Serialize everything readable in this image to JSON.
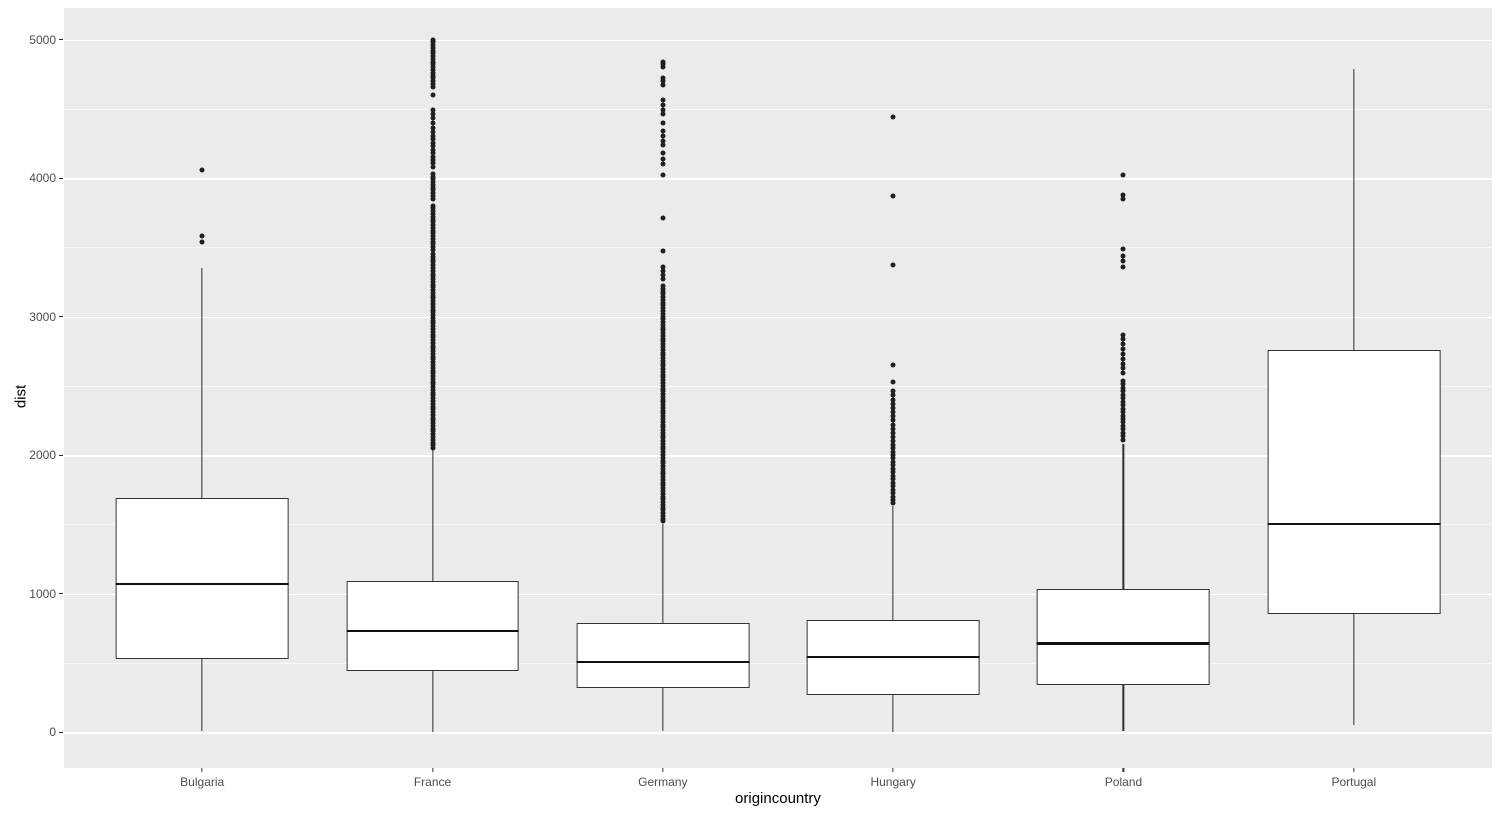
{
  "chart_data": {
    "type": "boxplot",
    "title": "",
    "xlabel": "origincountry",
    "ylabel": "dist",
    "categories": [
      "Bulgaria",
      "France",
      "Germany",
      "Hungary",
      "Poland",
      "Portugal"
    ],
    "y_ticks": [
      0,
      1000,
      2000,
      3000,
      4000,
      5000
    ],
    "y_minor_ticks": [
      500,
      1500,
      2500,
      3500,
      4500
    ],
    "ylim": [
      -260,
      5230
    ],
    "grid": true,
    "legend": "none",
    "box_width_fraction": 0.75,
    "series": [
      {
        "name": "Bulgaria",
        "whisker_low": 5,
        "q1": 530,
        "median": 1070,
        "q3": 1690,
        "whisker_high": 3350,
        "outliers": [
          3540,
          3580,
          4060
        ]
      },
      {
        "name": "France",
        "whisker_low": 1,
        "q1": 440,
        "median": 730,
        "q3": 1090,
        "whisker_high": 2050,
        "outliers": [
          2050,
          2070,
          2090,
          2110,
          2130,
          2150,
          2170,
          2190,
          2210,
          2230,
          2250,
          2270,
          2290,
          2310,
          2330,
          2350,
          2370,
          2390,
          2410,
          2430,
          2450,
          2470,
          2490,
          2510,
          2530,
          2550,
          2570,
          2590,
          2610,
          2630,
          2650,
          2670,
          2690,
          2710,
          2730,
          2750,
          2770,
          2790,
          2810,
          2830,
          2850,
          2870,
          2890,
          2910,
          2930,
          2950,
          2970,
          2990,
          3010,
          3030,
          3050,
          3070,
          3090,
          3110,
          3130,
          3150,
          3170,
          3190,
          3210,
          3230,
          3250,
          3270,
          3290,
          3310,
          3330,
          3350,
          3370,
          3390,
          3410,
          3430,
          3450,
          3480,
          3500,
          3520,
          3540,
          3560,
          3580,
          3600,
          3620,
          3640,
          3660,
          3680,
          3700,
          3720,
          3740,
          3760,
          3780,
          3800,
          3850,
          3870,
          3890,
          3910,
          3930,
          3950,
          3970,
          3990,
          4010,
          4030,
          4080,
          4105,
          4130,
          4155,
          4180,
          4205,
          4230,
          4255,
          4280,
          4305,
          4330,
          4360,
          4400,
          4430,
          4460,
          4490,
          4600,
          4660,
          4680,
          4700,
          4720,
          4740,
          4760,
          4780,
          4800,
          4820,
          4840,
          4860,
          4880,
          4900,
          4920,
          4940,
          4960,
          4980,
          5000
        ]
      },
      {
        "name": "Germany",
        "whisker_low": 5,
        "q1": 315,
        "median": 505,
        "q3": 790,
        "whisker_high": 1500,
        "outliers": [
          1520,
          1540,
          1560,
          1580,
          1600,
          1620,
          1640,
          1660,
          1680,
          1700,
          1720,
          1740,
          1760,
          1780,
          1800,
          1820,
          1840,
          1860,
          1880,
          1900,
          1920,
          1940,
          1960,
          1980,
          2000,
          2020,
          2040,
          2060,
          2080,
          2100,
          2120,
          2140,
          2160,
          2180,
          2200,
          2220,
          2240,
          2260,
          2280,
          2300,
          2320,
          2340,
          2360,
          2380,
          2400,
          2420,
          2440,
          2460,
          2480,
          2500,
          2520,
          2540,
          2560,
          2580,
          2600,
          2620,
          2640,
          2660,
          2680,
          2700,
          2720,
          2740,
          2760,
          2780,
          2800,
          2820,
          2840,
          2860,
          2880,
          2900,
          2920,
          2940,
          2960,
          2980,
          3000,
          3020,
          3040,
          3060,
          3080,
          3100,
          3120,
          3140,
          3160,
          3180,
          3200,
          3220,
          3270,
          3300,
          3330,
          3360,
          3470,
          3710,
          4020,
          4100,
          4140,
          4180,
          4240,
          4270,
          4300,
          4340,
          4400,
          4460,
          4490,
          4530,
          4560,
          4670,
          4700,
          4720,
          4800,
          4820,
          4840
        ]
      },
      {
        "name": "Hungary",
        "whisker_low": 3,
        "q1": 270,
        "median": 540,
        "q3": 810,
        "whisker_high": 1630,
        "outliers": [
          1650,
          1675,
          1700,
          1725,
          1750,
          1775,
          1800,
          1825,
          1850,
          1875,
          1900,
          1925,
          1950,
          1975,
          2000,
          2025,
          2050,
          2075,
          2100,
          2130,
          2160,
          2190,
          2220,
          2250,
          2280,
          2310,
          2340,
          2370,
          2400,
          2430,
          2460,
          2530,
          2650,
          3370,
          3870,
          4440
        ]
      },
      {
        "name": "Poland",
        "whisker_low": 5,
        "q1": 340,
        "median": 640,
        "q3": 1030,
        "whisker_high": 2080,
        "outliers": [
          2110,
          2135,
          2160,
          2185,
          2210,
          2235,
          2260,
          2285,
          2310,
          2335,
          2360,
          2385,
          2410,
          2435,
          2460,
          2485,
          2510,
          2535,
          2590,
          2625,
          2660,
          2695,
          2730,
          2765,
          2800,
          2835,
          2870,
          3360,
          3400,
          3440,
          3490,
          3850,
          3880,
          4020
        ]
      },
      {
        "name": "Portugal",
        "whisker_low": 50,
        "q1": 855,
        "median": 1500,
        "q3": 2760,
        "whisker_high": 4790,
        "outliers": []
      }
    ]
  },
  "axes": {
    "x_title": "origincountry",
    "y_title": "dist",
    "y_tick_labels": [
      "0",
      "1000",
      "2000",
      "3000",
      "4000",
      "5000"
    ],
    "x_tick_labels": [
      "Bulgaria",
      "France",
      "Germany",
      "Hungary",
      "Poland",
      "Portugal"
    ]
  },
  "colors": {
    "panel_background": "#ebebeb",
    "gridline": "#ffffff",
    "box_fill": "#ffffff",
    "box_border": "#333333",
    "median": "#111111",
    "outlier": "#1f1f1f",
    "tick_text": "#4d4d4d",
    "title_text": "#000000",
    "figure_background": "#ffffff"
  }
}
